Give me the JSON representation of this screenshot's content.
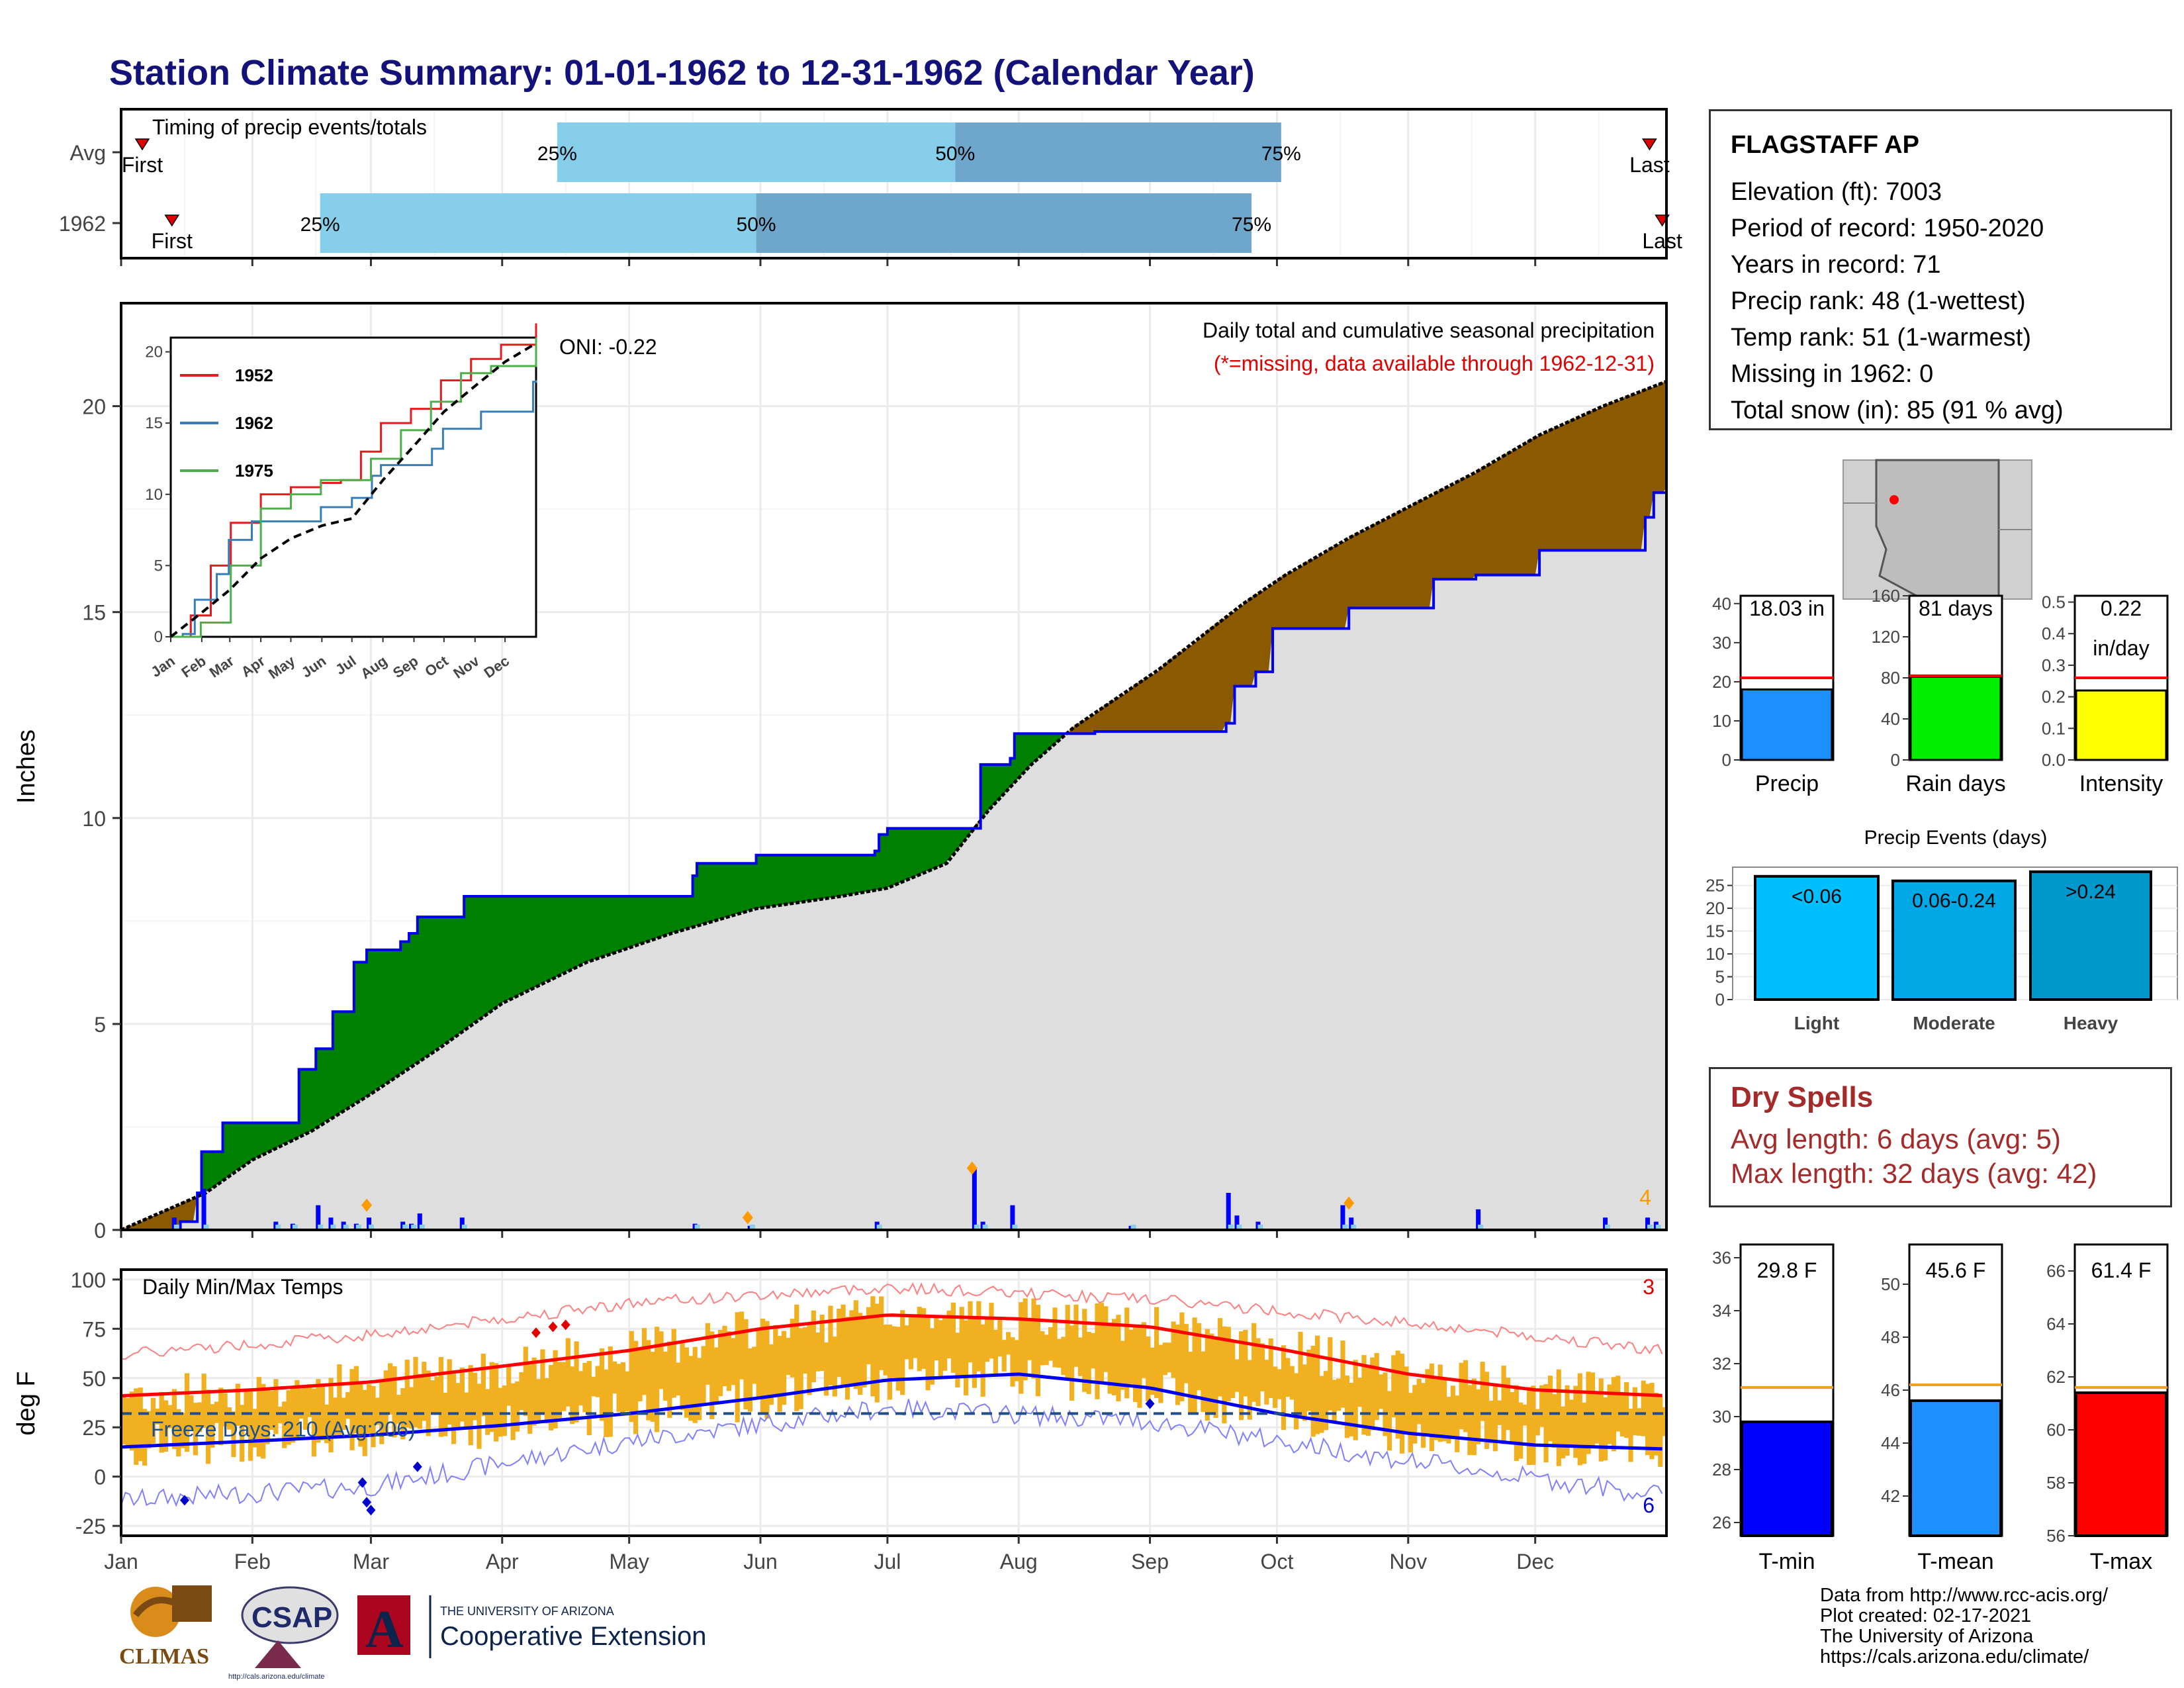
{
  "title": "Station Climate Summary: 01-01-1962 to 12-31-1962 (Calendar Year)",
  "timing": {
    "title": "Timing of precip events/totals",
    "rows": [
      {
        "label": "Avg",
        "first": "First",
        "last": "Last",
        "first_day": 5,
        "last_day": 361,
        "q25_day": 103,
        "q50_day": 197,
        "q75_day": 274
      },
      {
        "label": "1962",
        "first": "First",
        "last": "Last",
        "first_day": 12,
        "last_day": 364,
        "q25_day": 47,
        "q50_day": 150,
        "q75_day": 267
      }
    ],
    "q_labels": [
      "25%",
      "50%",
      "75%"
    ]
  },
  "main": {
    "ylabel": "Inches",
    "yticks": [
      0,
      5,
      10,
      15,
      20
    ],
    "ymax": 22.5,
    "header": "Daily total and cumulative seasonal precipitation",
    "note": "(*=missing, data available through 1962-12-31)",
    "oni": "ONI: -0.22",
    "corner_count": "4",
    "chart_data": {
      "type": "area",
      "x_unit": "day of year",
      "series": [
        {
          "name": "avg cumulative",
          "x": [
            0,
            20,
            31,
            45,
            59,
            75,
            90,
            110,
            130,
            150,
            170,
            181,
            195,
            205,
            215,
            225,
            235,
            245,
            255,
            265,
            275,
            290,
            305,
            320,
            335,
            350,
            365
          ],
          "values": [
            0,
            0.9,
            1.7,
            2.4,
            3.3,
            4.4,
            5.5,
            6.5,
            7.2,
            7.8,
            8.1,
            8.3,
            8.9,
            10.2,
            11.3,
            12.2,
            12.9,
            13.6,
            14.4,
            15.2,
            15.9,
            16.8,
            17.6,
            18.4,
            19.3,
            20.0,
            20.6
          ]
        },
        {
          "name": "1962 cumulative",
          "x": [
            0,
            12,
            14,
            18,
            19,
            24,
            34,
            42,
            46,
            50,
            55,
            58,
            62,
            66,
            68,
            70,
            80,
            81,
            90,
            110,
            118,
            135,
            136,
            148,
            150,
            165,
            178,
            179,
            181,
            201,
            203,
            210,
            211,
            221,
            230,
            261,
            263,
            268,
            272,
            288,
            290,
            310,
            320,
            335,
            360,
            362,
            365
          ],
          "values": [
            0,
            0,
            0.2,
            0.9,
            1.9,
            2.6,
            2.6,
            3.9,
            4.4,
            5.3,
            6.5,
            6.8,
            6.8,
            7.0,
            7.2,
            7.6,
            7.6,
            8.1,
            8.1,
            8.1,
            8.1,
            8.6,
            8.9,
            8.9,
            9.1,
            9.1,
            9.2,
            9.6,
            9.75,
            9.75,
            11.3,
            11.45,
            12.05,
            12.05,
            12.1,
            12.3,
            13.2,
            13.55,
            14.6,
            14.6,
            15.1,
            15.8,
            15.9,
            16.5,
            17.3,
            17.9,
            18.0
          ]
        }
      ],
      "daily_bars": {
        "x": [
          12,
          19,
          36,
          40,
          46,
          49,
          52,
          55,
          58,
          66,
          68,
          70,
          80,
          135,
          148,
          178,
          201,
          203,
          210,
          238,
          261,
          263,
          268,
          288,
          290,
          320,
          350,
          360,
          362
        ],
        "values": [
          0.3,
          1.0,
          0.2,
          0.15,
          0.6,
          0.3,
          0.2,
          0.15,
          0.3,
          0.2,
          0.15,
          0.4,
          0.3,
          0.15,
          0.1,
          0.2,
          1.5,
          0.2,
          0.6,
          0.1,
          0.9,
          0.35,
          0.2,
          0.6,
          0.3,
          0.5,
          0.3,
          0.3,
          0.2
        ]
      },
      "ylim": [
        0,
        22.5
      ]
    }
  },
  "inset": {
    "yticks": [
      "0",
      "5",
      "10",
      "15",
      "20"
    ],
    "months": [
      "Jan",
      "Feb",
      "Mar",
      "Apr",
      "May",
      "Jun",
      "Jul",
      "Aug",
      "Sep",
      "Oct",
      "Nov",
      "Dec"
    ],
    "legend": [
      {
        "label": "1952",
        "color": "#e41a1c"
      },
      {
        "label": "1962",
        "color": "#377eb8"
      },
      {
        "label": "1975",
        "color": "#4daf4a"
      }
    ],
    "chart_data": {
      "type": "line",
      "x_unit": "day of year",
      "series": [
        {
          "name": "1952",
          "x": [
            0,
            20,
            40,
            60,
            90,
            120,
            150,
            170,
            190,
            210,
            240,
            270,
            300,
            330,
            365
          ],
          "values": [
            0,
            1.5,
            5,
            8,
            10,
            10.5,
            10.8,
            11,
            13,
            15,
            16,
            18,
            19.5,
            20.5,
            22
          ]
        },
        {
          "name": "1962",
          "x": [
            0,
            12,
            24,
            34,
            46,
            58,
            81,
            110,
            150,
            181,
            201,
            210,
            261,
            272,
            310,
            362,
            365
          ],
          "values": [
            0,
            0.2,
            2.6,
            2.6,
            4.4,
            6.8,
            8.1,
            8.1,
            9.1,
            9.75,
            11.3,
            12.05,
            13.2,
            14.6,
            15.8,
            17.9,
            18
          ]
        },
        {
          "name": "1975",
          "x": [
            0,
            30,
            60,
            90,
            120,
            150,
            180,
            200,
            230,
            260,
            290,
            320,
            365
          ],
          "values": [
            0,
            1,
            5,
            9,
            10,
            11,
            11,
            12.5,
            14.5,
            16.5,
            18.5,
            19,
            21
          ]
        },
        {
          "name": "avg",
          "x": [
            0,
            31,
            59,
            90,
            120,
            151,
            181,
            212,
            243,
            273,
            304,
            334,
            365
          ],
          "values": [
            0,
            1.7,
            3.3,
            5.5,
            6.9,
            7.8,
            8.3,
            11.0,
            13.4,
            15.8,
            17.6,
            19.3,
            20.6
          ]
        }
      ],
      "ylim": [
        0,
        21
      ]
    }
  },
  "temp": {
    "ylabel": "deg F",
    "title": "Daily Min/Max Temps",
    "yticks": [
      -25,
      0,
      25,
      50,
      75,
      100
    ],
    "freeze": "Freeze Days: 210 (Avg:206)",
    "count_top": "3",
    "count_bottom": "6",
    "months": [
      "Jan",
      "Feb",
      "Mar",
      "Apr",
      "May",
      "Jun",
      "Jul",
      "Aug",
      "Sep",
      "Oct",
      "Nov",
      "Dec"
    ],
    "chart_data": {
      "type": "line",
      "x_unit": "day of year",
      "series": [
        {
          "name": "avg max",
          "x": [
            0,
            31,
            59,
            90,
            120,
            151,
            181,
            212,
            243,
            273,
            304,
            334,
            365
          ],
          "values": [
            41,
            44,
            48,
            56,
            64,
            75,
            82,
            80,
            76,
            65,
            52,
            44,
            41
          ]
        },
        {
          "name": "avg min",
          "x": [
            0,
            31,
            59,
            90,
            120,
            151,
            181,
            212,
            243,
            273,
            304,
            334,
            365
          ],
          "values": [
            15,
            18,
            21,
            26,
            32,
            40,
            49,
            52,
            45,
            32,
            22,
            16,
            14
          ]
        },
        {
          "name": "record max",
          "x": [
            0,
            59,
            120,
            181,
            243,
            304,
            365
          ],
          "values": [
            62,
            72,
            88,
            96,
            90,
            78,
            64
          ]
        },
        {
          "name": "record min",
          "x": [
            0,
            59,
            120,
            181,
            243,
            304,
            365
          ],
          "values": [
            -12,
            -5,
            18,
            35,
            28,
            8,
            -10
          ]
        }
      ],
      "freeze_line": 32,
      "ylim": [
        -30,
        105
      ]
    }
  },
  "station": {
    "name": "FLAGSTAFF AP",
    "rows": [
      "Elevation (ft): 7003",
      "Period of record: 1950-2020",
      "Years in record: 71",
      "Precip rank: 48 (1-wettest)",
      "Temp rank: 51 (1-warmest)",
      "Missing in 1962: 0",
      "Total snow (in): 85 (91 % avg)"
    ]
  },
  "mini_bars": [
    {
      "name": "Precip",
      "value_label": "18.03 in",
      "value": 18.03,
      "avg": 21,
      "ticks": [
        "0",
        "10",
        "20",
        "30",
        "40"
      ],
      "max": 42,
      "color": "#1e8fff"
    },
    {
      "name": "Rain days",
      "value_label": "81 days",
      "value": 81,
      "avg": 82,
      "ticks": [
        "0",
        "40",
        "80",
        "120",
        "160"
      ],
      "max": 160,
      "color": "#00ee00"
    },
    {
      "name": "Intensity",
      "value_label": "0.22",
      "value_label2": "in/day",
      "value": 0.22,
      "avg": 0.26,
      "ticks": [
        "0.0",
        "0.1",
        "0.2",
        "0.3",
        "0.4",
        "0.5"
      ],
      "max": 0.52,
      "color": "#ffff00"
    }
  ],
  "events": {
    "title": "Precip Events (days)",
    "ticks": [
      "0",
      "5",
      "10",
      "15",
      "20",
      "25"
    ],
    "chart_data": {
      "type": "bar",
      "categories": [
        "Light",
        "Moderate",
        "Heavy"
      ],
      "labels": [
        "<0.06",
        "0.06-0.24",
        ">0.24"
      ],
      "values": [
        27,
        26,
        28
      ],
      "colors": [
        "#00bfff",
        "#00a9e6",
        "#0099cc"
      ],
      "ylim": [
        0,
        29
      ]
    }
  },
  "dry": {
    "title": "Dry Spells",
    "avg": "Avg length: 6 days (avg: 5)",
    "max": "Max length: 32 days (avg: 42)"
  },
  "temp_bars": [
    {
      "name": "T-min",
      "value_label": "29.8 F",
      "value": 29.8,
      "avg": 31.1,
      "ticks": [
        "26",
        "28",
        "30",
        "32",
        "34",
        "36"
      ],
      "min": 25.5,
      "max": 36.5,
      "color": "#0000ff"
    },
    {
      "name": "T-mean",
      "value_label": "45.6 F",
      "value": 45.6,
      "avg": 46.2,
      "ticks": [
        "42",
        "44",
        "46",
        "48",
        "50"
      ],
      "min": 40.5,
      "max": 51.5,
      "color": "#1e8fff"
    },
    {
      "name": "T-max",
      "value_label": "61.4 F",
      "value": 61.4,
      "avg": 61.6,
      "ticks": [
        "56",
        "58",
        "60",
        "62",
        "64",
        "66"
      ],
      "min": 56,
      "max": 67,
      "color": "#ff0000"
    }
  ],
  "credits": [
    "Data from http://www.rcc-acis.org/",
    "Plot created: 02-17-2021",
    "The University of Arizona",
    "https://cals.arizona.edu/climate/"
  ],
  "logos": {
    "climas": "CLIMAS",
    "csap": "CSAP",
    "csap_url": "http://cals.arizona.edu/climate",
    "ua_line1": "THE UNIVERSITY OF ARIZONA",
    "ua_line2": "Cooperative Extension",
    "ua_letter": "A"
  }
}
